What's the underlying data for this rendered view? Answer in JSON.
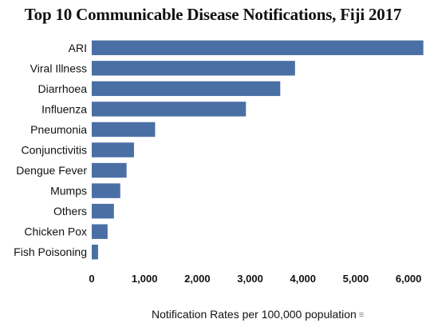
{
  "chart_data": {
    "type": "bar",
    "orientation": "horizontal",
    "title": "Top 10 Communicable Disease Notifications, Fiji 2017",
    "xlabel": "Notification Rates per 100,000 population",
    "ylabel": "",
    "categories": [
      "ARI",
      "Viral Illness",
      "Diarrhoea",
      "Influenza",
      "Pneumonia",
      "Conjunctivitis",
      "Dengue Fever",
      "Mumps",
      "Others",
      "Chicken Pox",
      "Fish Poisoning"
    ],
    "values": [
      6280,
      3850,
      3570,
      2920,
      1200,
      800,
      660,
      540,
      420,
      300,
      120
    ],
    "xlim": [
      0,
      6300
    ],
    "x_ticks": [
      0,
      1000,
      2000,
      3000,
      4000,
      5000,
      6000
    ],
    "x_tick_labels": [
      "0",
      "1,000",
      "2,000",
      "3,000",
      "4,000",
      "5,000",
      "6,000"
    ],
    "grid": false,
    "bar_color": "#4a6fa5"
  },
  "sort_icon": "sort-descending-icon"
}
